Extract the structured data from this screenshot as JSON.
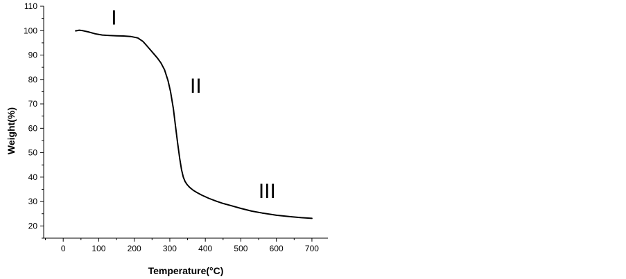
{
  "chart_data": {
    "type": "line",
    "xlabel": "Temperature(°C)",
    "ylabel": "Weight(%)",
    "xlim": [
      -55,
      745
    ],
    "ylim": [
      15,
      110
    ],
    "x_ticks": [
      0,
      100,
      200,
      300,
      400,
      500,
      600,
      700
    ],
    "y_ticks": [
      20,
      30,
      40,
      50,
      60,
      70,
      80,
      90,
      100,
      110
    ],
    "grid": false,
    "series": [
      {
        "x": [
          35,
          45,
          55,
          70,
          90,
          110,
          130,
          150,
          170,
          190,
          210,
          225,
          240,
          255,
          265,
          275,
          285,
          295,
          302,
          310,
          316,
          322,
          328,
          333,
          338,
          343,
          348,
          352,
          356,
          360,
          366,
          375,
          390,
          410,
          430,
          450,
          470,
          500,
          530,
          560,
          600,
          640,
          670,
          700
        ],
        "y": [
          99.9,
          100.2,
          100.0,
          99.5,
          98.7,
          98.2,
          98.0,
          97.9,
          97.8,
          97.6,
          97.0,
          95.5,
          93.0,
          90.5,
          88.8,
          86.8,
          84.0,
          79.5,
          75.0,
          68.0,
          61.0,
          54.0,
          47.5,
          43.0,
          40.0,
          38.2,
          37.1,
          36.4,
          35.8,
          35.3,
          34.6,
          33.8,
          32.6,
          31.3,
          30.2,
          29.2,
          28.4,
          27.2,
          26.1,
          25.3,
          24.4,
          23.8,
          23.4,
          23.1
        ],
        "color": "#000000"
      }
    ],
    "annotations": [
      {
        "text": "I",
        "x": 143,
        "y": 102.5
      },
      {
        "text": "II",
        "x": 373,
        "y": 74.5
      },
      {
        "text": "III",
        "x": 574,
        "y": 31.5
      }
    ]
  }
}
